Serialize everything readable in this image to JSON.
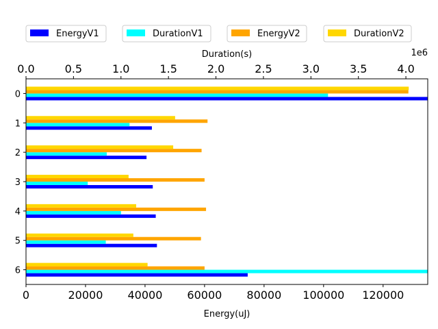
{
  "chart_data": {
    "type": "bar",
    "orientation": "horizontal",
    "categories": [
      "0",
      "1",
      "2",
      "3",
      "4",
      "5",
      "6"
    ],
    "legend": {
      "placement": "top-center, above chart",
      "entries": [
        "EnergyV1",
        "DurationV1",
        "EnergyV2",
        "DurationV2"
      ]
    },
    "series": [
      {
        "name": "EnergyV1",
        "axis": "bottom",
        "color": "#0000ff",
        "values": [
          135000,
          42300,
          40500,
          42600,
          43600,
          44000,
          74500
        ]
      },
      {
        "name": "DurationV1",
        "axis": "top",
        "color": "#00ffff",
        "values": [
          3180000,
          1090000,
          850000,
          650000,
          1000000,
          840000,
          4250000
        ]
      },
      {
        "name": "EnergyV2",
        "axis": "bottom",
        "color": "#ffa500",
        "values": [
          128500,
          61000,
          59000,
          60000,
          60500,
          58800,
          60000
        ]
      },
      {
        "name": "DurationV2",
        "axis": "top",
        "color": "#ffd700",
        "values": [
          4030000,
          1570000,
          1550000,
          1080000,
          1160000,
          1130000,
          1280000
        ]
      }
    ],
    "x_bottom": {
      "label": "Energy(uJ)",
      "range": [
        0,
        135000
      ],
      "ticks": [
        0,
        20000,
        40000,
        60000,
        80000,
        100000,
        120000
      ],
      "tick_labels": [
        "0",
        "20000",
        "40000",
        "60000",
        "80000",
        "100000",
        "120000"
      ]
    },
    "x_top": {
      "label": "Duration(s)",
      "range": [
        0,
        4230000
      ],
      "offset_text": "1e6",
      "ticks": [
        0,
        500000,
        1000000,
        1500000,
        2000000,
        2500000,
        3000000,
        3500000,
        4000000
      ],
      "tick_labels": [
        "0.0",
        "0.5",
        "1.0",
        "1.5",
        "2.0",
        "2.5",
        "3.0",
        "3.5",
        "4.0"
      ]
    },
    "grid": false
  }
}
